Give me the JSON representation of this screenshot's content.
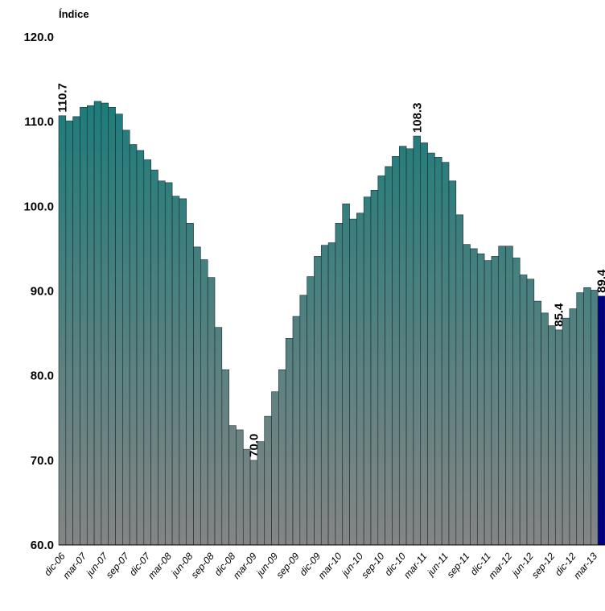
{
  "chart_data": {
    "type": "bar",
    "y_label": "Índice",
    "categories": [
      "dic-06",
      null,
      null,
      "mar-07",
      null,
      null,
      "jun-07",
      null,
      null,
      "sep-07",
      null,
      null,
      "dic-07",
      null,
      null,
      "mar-08",
      null,
      null,
      "jun-08",
      null,
      null,
      "sep-08",
      null,
      null,
      "dic-08",
      null,
      null,
      "mar-09",
      null,
      null,
      "jun-09",
      null,
      null,
      "sep-09",
      null,
      null,
      "dic-09",
      null,
      null,
      "mar-10",
      null,
      null,
      "jun-10",
      null,
      null,
      "sep-10",
      null,
      null,
      "dic-10",
      null,
      null,
      "mar-11",
      null,
      null,
      "jun-11",
      null,
      null,
      "sep-11",
      null,
      null,
      "dic-11",
      null,
      null,
      "mar-12",
      null,
      null,
      "jun-12",
      null,
      null,
      "sep-12",
      null,
      null,
      "dic-12",
      null,
      null,
      "mar-13",
      null
    ],
    "values": [
      110.7,
      110.1,
      110.6,
      111.7,
      111.9,
      112.4,
      112.2,
      111.7,
      110.9,
      109.0,
      107.3,
      106.6,
      105.5,
      104.3,
      103.0,
      102.8,
      101.2,
      100.9,
      98.0,
      95.2,
      93.7,
      91.6,
      85.7,
      80.7,
      74.1,
      73.6,
      71.3,
      70.0,
      72.2,
      75.2,
      78.1,
      80.7,
      84.4,
      87.0,
      89.5,
      91.7,
      94.1,
      95.4,
      95.7,
      98.0,
      100.3,
      98.5,
      99.2,
      101.1,
      101.9,
      103.6,
      104.7,
      105.9,
      107.1,
      106.8,
      108.3,
      107.5,
      106.3,
      105.8,
      105.2,
      103.0,
      99.0,
      95.5,
      95.0,
      94.4,
      93.6,
      94.1,
      95.3,
      95.3,
      93.9,
      91.9,
      91.4,
      88.8,
      87.4,
      85.9,
      85.4,
      86.8,
      87.9,
      89.8,
      90.4,
      90.1,
      89.4
    ],
    "value_labels": [
      "110.7",
      null,
      null,
      null,
      null,
      null,
      null,
      null,
      null,
      null,
      null,
      null,
      null,
      null,
      null,
      null,
      null,
      null,
      null,
      null,
      null,
      null,
      null,
      null,
      null,
      null,
      null,
      "70.0",
      null,
      null,
      null,
      null,
      null,
      null,
      null,
      null,
      null,
      null,
      null,
      null,
      null,
      null,
      null,
      null,
      null,
      null,
      null,
      null,
      null,
      null,
      "108.3",
      null,
      null,
      null,
      null,
      null,
      null,
      null,
      null,
      null,
      null,
      null,
      null,
      null,
      null,
      null,
      null,
      null,
      null,
      null,
      "85.4",
      null,
      null,
      null,
      null,
      null,
      "89.4"
    ],
    "color": "#0e7b7a",
    "color_bottom": "#858585",
    "highlight": {
      "index": 76,
      "color": "#000080"
    },
    "ylim": [
      60,
      120
    ],
    "yticks": [
      {
        "value": 60,
        "label": "60.0"
      },
      {
        "value": 70,
        "label": "70.0"
      },
      {
        "value": 80,
        "label": "80.0"
      },
      {
        "value": 90,
        "label": "90.0"
      },
      {
        "value": 100,
        "label": "100.0"
      },
      {
        "value": 110,
        "label": "110.0"
      },
      {
        "value": 120,
        "label": "120.0"
      }
    ],
    "grid": false
  }
}
